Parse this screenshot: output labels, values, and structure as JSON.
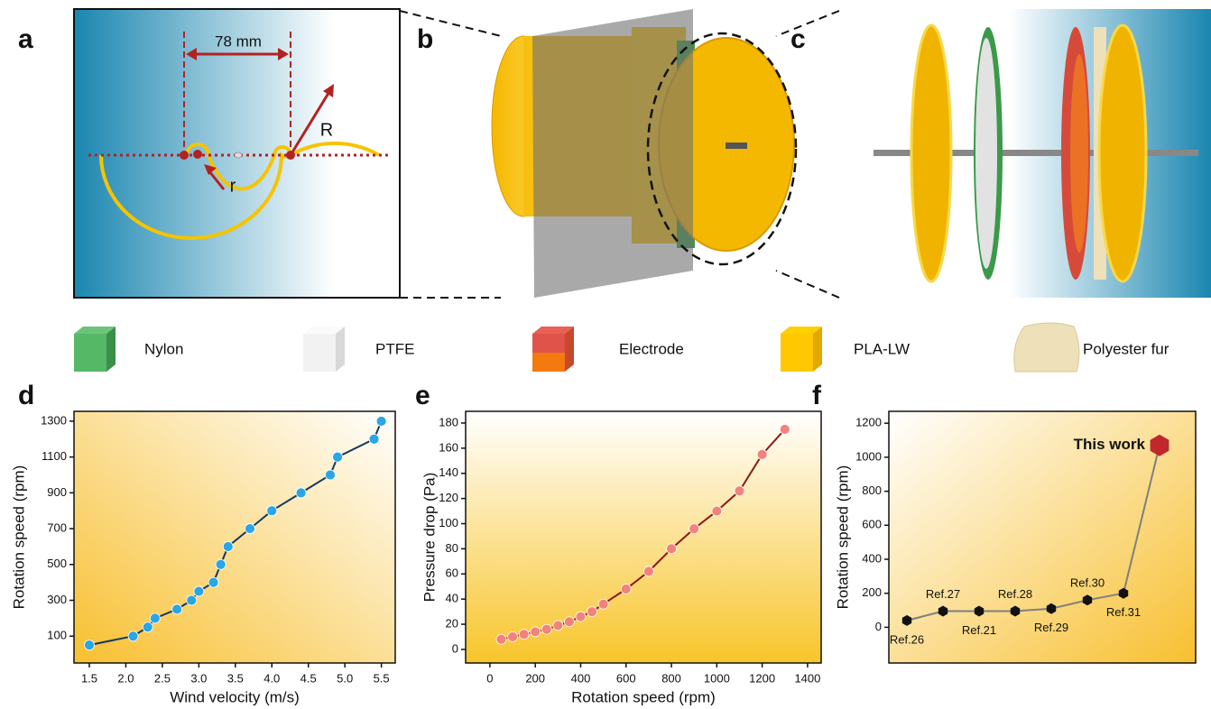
{
  "panel_labels": [
    "a",
    "b",
    "c",
    "d",
    "e",
    "f"
  ],
  "diagram_a": {
    "width_label": "78 mm",
    "big_radius": "R",
    "small_radius": "r"
  },
  "legend": [
    "Nylon",
    "PTFE",
    "Electrode",
    "PLA-LW",
    "Polyester fur"
  ],
  "chart_data": [
    {
      "type": "line",
      "xlabel": "Wind velocity (m/s)",
      "ylabel": "Rotation speed (rpm)",
      "x": [
        1.5,
        2.1,
        2.3,
        2.4,
        2.7,
        2.9,
        3.0,
        3.2,
        3.3,
        3.4,
        3.7,
        4.0,
        4.4,
        4.8,
        4.9,
        5.4,
        5.5
      ],
      "values": [
        50,
        100,
        150,
        200,
        250,
        300,
        350,
        400,
        500,
        600,
        700,
        800,
        900,
        1000,
        1100,
        1200,
        1300
      ],
      "color": "#17375e",
      "marker_color": "#2aa6e6",
      "xlim": [
        1.29,
        5.69
      ],
      "xticks": [
        1.5,
        {
          "value": 2,
          "label": "2.0"
        },
        2.5,
        {
          "value": 3,
          "label": "3.0"
        },
        3.5,
        {
          "value": 4,
          "label": "4.0"
        },
        4.5,
        {
          "value": 5,
          "label": "5.0"
        },
        5.5
      ],
      "ylim": [
        -50,
        1355
      ],
      "yticks": [
        100,
        300,
        500,
        700,
        900,
        1100,
        1300
      ],
      "grid": false
    },
    {
      "type": "line",
      "xlabel": "Rotation speed (rpm)",
      "ylabel": "Pressure drop (Pa)",
      "x": [
        50,
        100,
        150,
        200,
        250,
        300,
        350,
        400,
        450,
        500,
        600,
        700,
        800,
        900,
        1000,
        1100,
        1200,
        1300
      ],
      "values": [
        8,
        10,
        12,
        14,
        16,
        19,
        22,
        26,
        30,
        36,
        48,
        62,
        80,
        96,
        110,
        126,
        155,
        175
      ],
      "color": "#8b1a1a",
      "marker_color": "#f3827a",
      "xlim": [
        -107,
        1460
      ],
      "xticks": [
        0,
        200,
        400,
        600,
        800,
        1000,
        1200,
        1400
      ],
      "ylim": [
        -10.8,
        189.3
      ],
      "yticks": [
        0,
        20,
        40,
        60,
        80,
        100,
        120,
        140,
        160,
        180
      ],
      "grid": false
    },
    {
      "type": "category-line",
      "ylabel": "Rotation speed (rpm)",
      "categories": [
        "Ref.26",
        "Ref.27",
        "Ref.21",
        "Ref.28",
        "Ref.29",
        "Ref.30",
        "Ref.31",
        "This work"
      ],
      "values": [
        40,
        95,
        95,
        95,
        110,
        160,
        200,
        1070
      ],
      "color": "#7f7f7f",
      "marker_color": "#111111",
      "highlight_color": "#c0282d",
      "ylim": [
        -210,
        1270
      ],
      "yticks": [
        0,
        200,
        400,
        600,
        800,
        1000,
        1200
      ],
      "grid": false
    }
  ]
}
